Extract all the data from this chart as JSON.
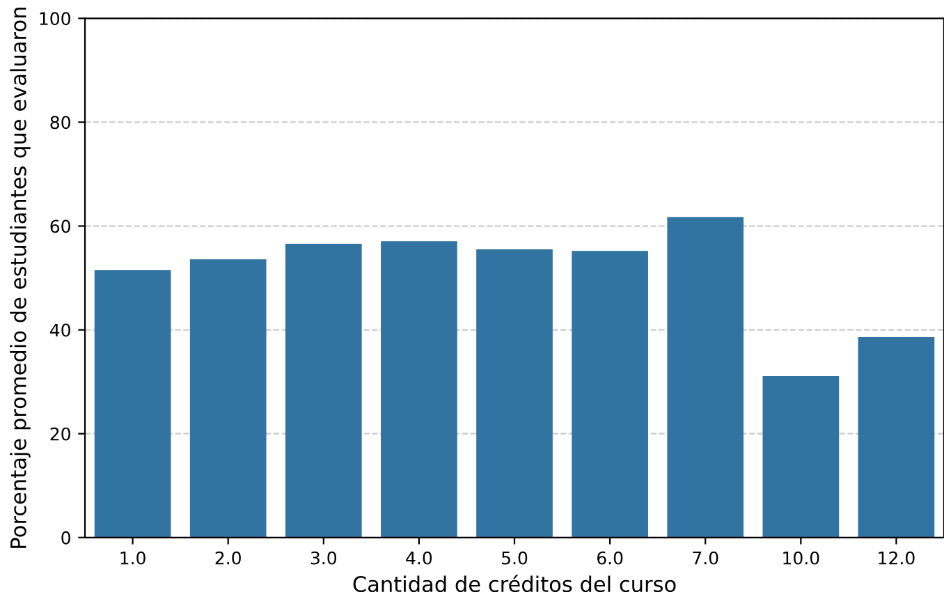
{
  "chart_data": {
    "type": "bar",
    "categories": [
      "1.0",
      "2.0",
      "3.0",
      "4.0",
      "5.0",
      "6.0",
      "7.0",
      "10.0",
      "12.0"
    ],
    "values": [
      51.5,
      53.6,
      56.6,
      57.1,
      55.5,
      55.2,
      61.7,
      31.1,
      38.6
    ],
    "color": "#3274a1",
    "xlabel": "Cantidad de créditos del curso",
    "ylabel": "Porcentaje promedio de estudiantes que evaluaron",
    "ylim": [
      0,
      100
    ],
    "yticks": [
      0,
      20,
      40,
      60,
      80,
      100
    ],
    "grid": "y",
    "legend": false
  }
}
